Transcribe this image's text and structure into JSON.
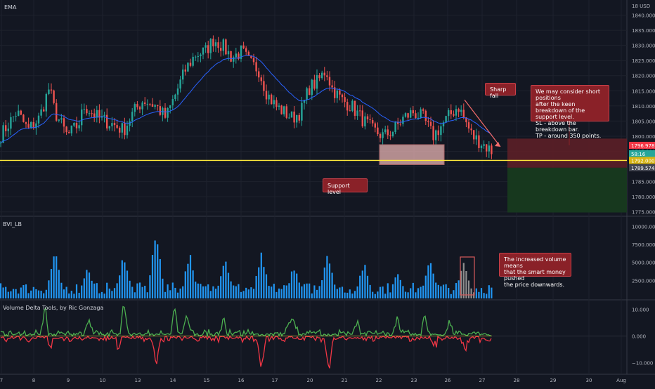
{
  "panes": {
    "price_title": "EMA",
    "volume_title": "BVI_LB",
    "delta_title": "Volume Delta Tools, by Ric Gonzaga"
  },
  "annotations": {
    "sharp_fall": "Sharp fall",
    "support_level": "Support level",
    "short_idea": [
      "We may consider short positions",
      "after the keen breakdown of the",
      "support level.",
      "SL - above the breakdown bar.",
      "TP - around 350 points."
    ],
    "volume_note": [
      "The increased volume means",
      "that the smart money pushed",
      "the price downwards."
    ]
  },
  "price_badges": {
    "red": "1796.978",
    "teal": "58:16",
    "yellow": "1792.000",
    "grey": "1789.574"
  },
  "colors": {
    "up": "#26a69a",
    "down": "#ef5350",
    "ema": "#2962ff",
    "support": "#ffeb3b",
    "volume": "#2196f3",
    "delta_pos": "#4caf50",
    "delta_neg": "#f23645",
    "stop_zone": "#5c1f27",
    "target_zone": "#173a1f",
    "annotation": "#8a2128"
  },
  "chart_data": [
    {
      "type": "candlestick",
      "title": "",
      "series_name": "",
      "currency": "USD",
      "x_ticks": [
        "7",
        "8",
        "9",
        "10",
        "13",
        "14",
        "15",
        "16",
        "17",
        "20",
        "21",
        "22",
        "23",
        "26",
        "27",
        "28",
        "29",
        "30",
        "Aug"
      ],
      "y_ticks": [
        1775,
        1780,
        1785,
        1790,
        1795,
        1800,
        1805,
        1810,
        1815,
        1820,
        1825,
        1830,
        1835,
        1840
      ],
      "y_tick_labels": [
        "1775.000",
        "1780.000",
        "1785.000",
        "1790.000",
        "1795.000",
        "1800.000",
        "1805.000",
        "1810.000",
        "1815.000",
        "1820.000",
        "1825.000",
        "1830.000",
        "1835.000",
        "1840.000"
      ],
      "ylim": [
        1774,
        1845
      ],
      "y_unit_label": "18 USD",
      "key_levels": {
        "support": 1792.0,
        "entry": 1796.978,
        "target": 1789.574
      },
      "anchor_closes": [
        [
          0,
          1800
        ],
        [
          12,
          1804
        ],
        [
          24,
          1808
        ],
        [
          40,
          1802
        ],
        [
          56,
          1806
        ],
        [
          70,
          1816
        ],
        [
          78,
          1808
        ],
        [
          96,
          1800
        ],
        [
          112,
          1804
        ],
        [
          120,
          1810
        ],
        [
          140,
          1806
        ],
        [
          160,
          1804
        ],
        [
          176,
          1802
        ],
        [
          190,
          1808
        ],
        [
          204,
          1812
        ],
        [
          222,
          1810
        ],
        [
          236,
          1806
        ],
        [
          250,
          1814
        ],
        [
          264,
          1822
        ],
        [
          278,
          1827
        ],
        [
          292,
          1828
        ],
        [
          304,
          1832
        ],
        [
          316,
          1830
        ],
        [
          330,
          1826
        ],
        [
          344,
          1828
        ],
        [
          356,
          1824
        ],
        [
          368,
          1822
        ],
        [
          380,
          1814
        ],
        [
          392,
          1810
        ],
        [
          404,
          1808
        ],
        [
          416,
          1806
        ],
        [
          428,
          1808
        ],
        [
          440,
          1816
        ],
        [
          452,
          1818
        ],
        [
          464,
          1822
        ],
        [
          472,
          1816
        ],
        [
          486,
          1812
        ],
        [
          500,
          1810
        ],
        [
          514,
          1806
        ],
        [
          530,
          1802
        ],
        [
          546,
          1800
        ],
        [
          560,
          1802
        ],
        [
          574,
          1806
        ],
        [
          588,
          1808
        ],
        [
          602,
          1806
        ],
        [
          616,
          1800
        ],
        [
          630,
          1804
        ],
        [
          644,
          1808
        ],
        [
          652,
          1810
        ],
        [
          660,
          1806
        ],
        [
          672,
          1800
        ],
        [
          684,
          1798
        ],
        [
          700,
          1795
        ]
      ]
    },
    {
      "type": "bar",
      "title": "",
      "y_ticks": [
        2500,
        5000,
        7500,
        10000
      ],
      "y_tick_labels": [
        "2500.000",
        "5000.000",
        "7500.000",
        "10000.000"
      ],
      "ylim": [
        0,
        11200
      ],
      "spikes": [
        [
          78,
          7000
        ],
        [
          124,
          4800
        ],
        [
          176,
          6800
        ],
        [
          222,
          10000
        ],
        [
          270,
          7000
        ],
        [
          320,
          6500
        ],
        [
          372,
          6800
        ],
        [
          418,
          5000
        ],
        [
          466,
          7000
        ],
        [
          518,
          5500
        ],
        [
          566,
          4200
        ],
        [
          612,
          6000
        ],
        [
          660,
          5500
        ]
      ]
    },
    {
      "type": "line",
      "title": "",
      "y_ticks": [
        10,
        0,
        -10
      ],
      "y_tick_labels": [
        "10.000",
        "0.000",
        "−10.000"
      ],
      "ylim": [
        -14,
        13
      ],
      "spikes": [
        [
          64,
          12
        ],
        [
          70,
          -5
        ],
        [
          126,
          7
        ],
        [
          170,
          -6
        ],
        [
          176,
          14
        ],
        [
          222,
          -11
        ],
        [
          248,
          10
        ],
        [
          266,
          8
        ],
        [
          318,
          6
        ],
        [
          372,
          -12
        ],
        [
          412,
          5
        ],
        [
          418,
          7
        ],
        [
          468,
          -13
        ],
        [
          508,
          5
        ],
        [
          566,
          6
        ],
        [
          604,
          7
        ],
        [
          620,
          -3
        ],
        [
          640,
          5
        ],
        [
          662,
          -4
        ]
      ]
    }
  ]
}
